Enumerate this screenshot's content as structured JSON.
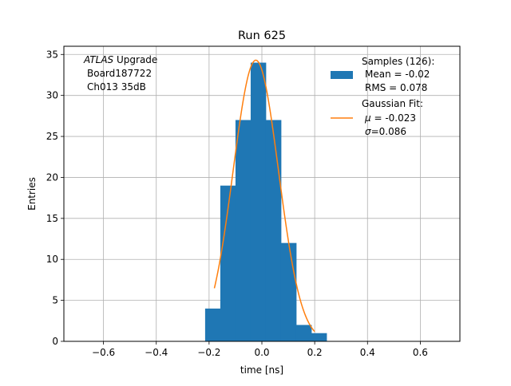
{
  "chart_data": {
    "type": "bar",
    "title": "Run 625",
    "xlabel": "time [ns]",
    "ylabel": "Entries",
    "xlim": [
      -0.75,
      0.75
    ],
    "ylim": [
      0,
      36
    ],
    "xticks": [
      -0.6,
      -0.4,
      -0.2,
      0.0,
      0.2,
      0.4,
      0.6
    ],
    "xtick_labels": [
      "−0.6",
      "−0.4",
      "−0.2",
      "0.0",
      "0.2",
      "0.4",
      "0.6"
    ],
    "yticks": [
      0,
      5,
      10,
      15,
      20,
      25,
      30,
      35
    ],
    "ytick_labels": [
      "0",
      "5",
      "10",
      "15",
      "20",
      "25",
      "30",
      "35"
    ],
    "grid": true,
    "legend_position": "top-right",
    "annotation": {
      "line1_italic": "ATLAS",
      "line1_rest": " Upgrade",
      "line2": "Board187722",
      "line3": "Ch013 35dB"
    },
    "histogram": {
      "name": "Samples (126):",
      "stats_lines": [
        "Mean = -0.02",
        "RMS = 0.078"
      ],
      "color": "#1f77b4",
      "bin_edges": [
        -0.215,
        -0.1575,
        -0.1,
        -0.0425,
        0.015,
        0.0725,
        0.13,
        0.1875,
        0.245
      ],
      "counts": [
        4,
        19,
        27,
        34,
        27,
        12,
        2,
        1
      ]
    },
    "fit": {
      "name": "Gaussian Fit:",
      "mu_label": "μ",
      "mu_value": " = -0.023",
      "sigma_label": "σ",
      "sigma_value": "=0.086",
      "color": "#ff7f0e",
      "amplitude": 34.3,
      "mu": -0.023,
      "sigma": 0.086,
      "x_range": [
        -0.18,
        0.2
      ]
    }
  }
}
